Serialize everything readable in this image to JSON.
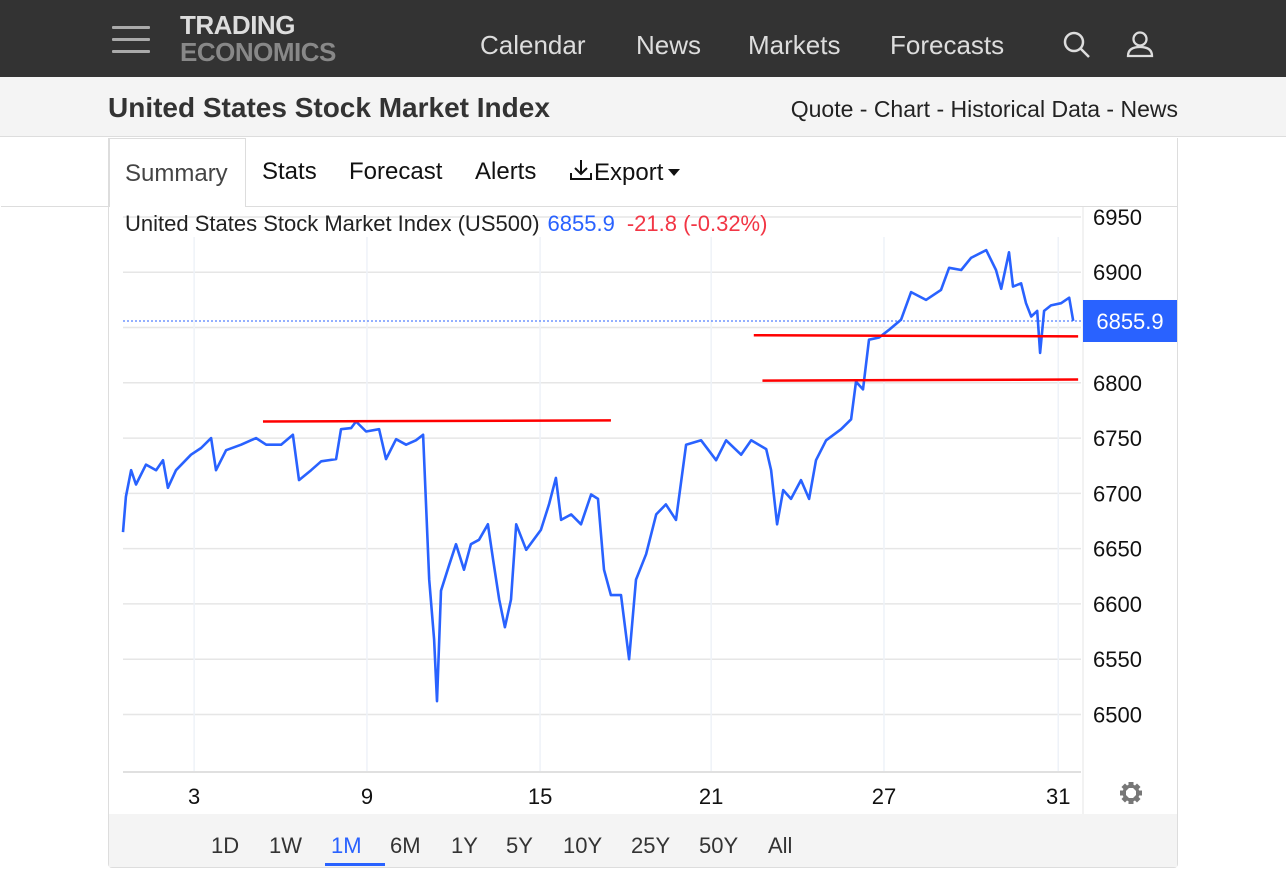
{
  "header": {
    "logo_line1": "TRADING",
    "logo_line2": "ECONOMICS",
    "nav": [
      "Calendar",
      "News",
      "Markets",
      "Forecasts"
    ]
  },
  "subheader": {
    "title": "United States Stock Market Index",
    "links": "Quote - Chart - Historical Data - News"
  },
  "tabs": {
    "summary": "Summary",
    "stats": "Stats",
    "forecast": "Forecast",
    "alerts": "Alerts",
    "export": "Export"
  },
  "ranges": [
    "1D",
    "1W",
    "1M",
    "6M",
    "1Y",
    "5Y",
    "10Y",
    "25Y",
    "50Y",
    "All"
  ],
  "active_range": "1M",
  "colors": {
    "line": "#2962ff",
    "annotation": "#ff0000",
    "down": "#f23645"
  },
  "chart_data": {
    "type": "line",
    "title": "United States Stock Market Index (US500)",
    "last": "6855.9",
    "change": "-21.8",
    "change_pct": "(-0.32%)",
    "last_value": 6855.9,
    "xlabel": "",
    "ylabel": "",
    "x_unit": "trading sessions",
    "xlim": [
      0,
      33.26
    ],
    "ylim": [
      6448,
      6959
    ],
    "yticks": [
      6500,
      6550,
      6600,
      6650,
      6700,
      6750,
      6800,
      6850,
      6900,
      6950
    ],
    "ytick_labels": [
      "6500",
      "6550",
      "6600",
      "6650",
      "6700",
      "6750",
      "6800",
      "",
      "6900",
      "6950"
    ],
    "xticks": [
      {
        "x": 2.47,
        "label": "3"
      },
      {
        "x": 8.47,
        "label": "9"
      },
      {
        "x": 14.48,
        "label": "15"
      },
      {
        "x": 20.42,
        "label": "21"
      },
      {
        "x": 26.42,
        "label": "27"
      },
      {
        "x": 32.47,
        "label": "31"
      }
    ],
    "series": [
      {
        "name": "US500",
        "points": [
          [
            0,
            6665
          ],
          [
            0.1,
            6697
          ],
          [
            0.28,
            6721
          ],
          [
            0.45,
            6708
          ],
          [
            0.8,
            6726
          ],
          [
            1.15,
            6721
          ],
          [
            1.39,
            6730
          ],
          [
            1.56,
            6705
          ],
          [
            1.84,
            6721
          ],
          [
            2.36,
            6735
          ],
          [
            2.71,
            6741
          ],
          [
            3.06,
            6750
          ],
          [
            3.23,
            6721
          ],
          [
            3.58,
            6739
          ],
          [
            4.1,
            6744
          ],
          [
            4.44,
            6748
          ],
          [
            4.62,
            6750
          ],
          [
            4.97,
            6744
          ],
          [
            5.49,
            6744
          ],
          [
            5.9,
            6753
          ],
          [
            6.11,
            6712
          ],
          [
            6.53,
            6721
          ],
          [
            6.88,
            6729
          ],
          [
            7.4,
            6731
          ],
          [
            7.57,
            6758
          ],
          [
            7.92,
            6759
          ],
          [
            8.09,
            6765
          ],
          [
            8.44,
            6756
          ],
          [
            8.89,
            6758
          ],
          [
            9.13,
            6731
          ],
          [
            9.48,
            6749
          ],
          [
            9.83,
            6744
          ],
          [
            10.17,
            6748
          ],
          [
            10.42,
            6753
          ],
          [
            10.63,
            6622
          ],
          [
            10.8,
            6568
          ],
          [
            10.9,
            6512
          ],
          [
            11.04,
            6612
          ],
          [
            11.32,
            6635
          ],
          [
            11.56,
            6654
          ],
          [
            11.84,
            6631
          ],
          [
            12.08,
            6654
          ],
          [
            12.36,
            6658
          ],
          [
            12.67,
            6672
          ],
          [
            12.85,
            6640
          ],
          [
            13.06,
            6604
          ],
          [
            13.26,
            6579
          ],
          [
            13.47,
            6604
          ],
          [
            13.65,
            6672
          ],
          [
            14.0,
            6649
          ],
          [
            14.51,
            6667
          ],
          [
            14.79,
            6690
          ],
          [
            15.03,
            6714
          ],
          [
            15.21,
            6676
          ],
          [
            15.56,
            6681
          ],
          [
            15.9,
            6672
          ],
          [
            16.25,
            6699
          ],
          [
            16.49,
            6695
          ],
          [
            16.7,
            6631
          ],
          [
            16.94,
            6608
          ],
          [
            17.29,
            6608
          ],
          [
            17.57,
            6550
          ],
          [
            17.81,
            6622
          ],
          [
            18.16,
            6645
          ],
          [
            18.51,
            6681
          ],
          [
            18.85,
            6690
          ],
          [
            19.2,
            6676
          ],
          [
            19.55,
            6744
          ],
          [
            20.07,
            6748
          ],
          [
            20.59,
            6730
          ],
          [
            20.94,
            6748
          ],
          [
            21.46,
            6735
          ],
          [
            21.81,
            6748
          ],
          [
            22.33,
            6740
          ],
          [
            22.5,
            6721
          ],
          [
            22.71,
            6672
          ],
          [
            22.92,
            6703
          ],
          [
            23.19,
            6695
          ],
          [
            23.54,
            6712
          ],
          [
            23.82,
            6695
          ],
          [
            24.06,
            6730
          ],
          [
            24.41,
            6748
          ],
          [
            24.93,
            6758
          ],
          [
            25.28,
            6767
          ],
          [
            25.45,
            6801
          ],
          [
            25.69,
            6794
          ],
          [
            25.9,
            6839
          ],
          [
            26.25,
            6841
          ],
          [
            26.6,
            6848
          ],
          [
            27.01,
            6857
          ],
          [
            27.36,
            6882
          ],
          [
            27.88,
            6875
          ],
          [
            28.4,
            6884
          ],
          [
            28.68,
            6904
          ],
          [
            29.1,
            6902
          ],
          [
            29.44,
            6913
          ],
          [
            29.97,
            6920
          ],
          [
            30.31,
            6902
          ],
          [
            30.49,
            6885
          ],
          [
            30.76,
            6918
          ],
          [
            30.9,
            6887
          ],
          [
            31.18,
            6890
          ],
          [
            31.35,
            6872
          ],
          [
            31.53,
            6860
          ],
          [
            31.74,
            6865
          ],
          [
            31.84,
            6827
          ],
          [
            31.98,
            6865
          ],
          [
            32.22,
            6870
          ],
          [
            32.57,
            6872
          ],
          [
            32.85,
            6877
          ],
          [
            32.99,
            6856
          ]
        ]
      }
    ],
    "annotations": [
      {
        "type": "line",
        "from": [
          4.86,
          6765
        ],
        "to": [
          16.94,
          6766
        ]
      },
      {
        "type": "line",
        "from": [
          21.9,
          6843
        ],
        "to": [
          33.16,
          6842
        ]
      },
      {
        "type": "line",
        "from": [
          22.2,
          6802
        ],
        "to": [
          33.16,
          6803
        ]
      }
    ]
  }
}
